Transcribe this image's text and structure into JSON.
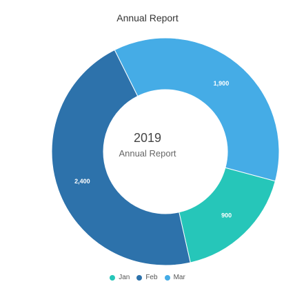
{
  "chart_data": {
    "type": "pie",
    "variant": "donut",
    "title": "Annual Report",
    "center": {
      "year": "2019",
      "label": "Annual Report"
    },
    "categories": [
      "Jan",
      "Feb",
      "Mar"
    ],
    "values": [
      900,
      2400,
      1900
    ],
    "value_labels": [
      "900",
      "2,400",
      "1,900"
    ],
    "colors": [
      "#26c6b9",
      "#2d72ab",
      "#45ace6"
    ],
    "legend": {
      "position": "bottom",
      "items": [
        "Jan",
        "Feb",
        "Mar"
      ]
    }
  }
}
